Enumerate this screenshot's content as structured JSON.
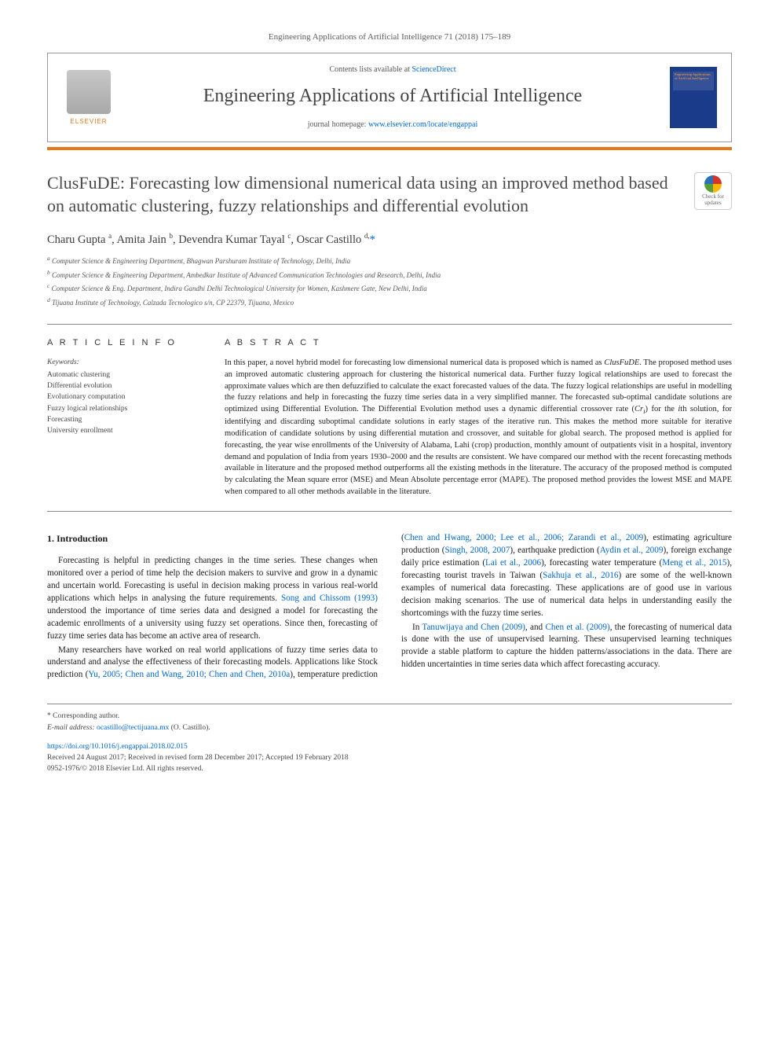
{
  "journal_ref": "Engineering Applications of Artificial Intelligence 71 (2018) 175–189",
  "header": {
    "contents_prefix": "Contents lists available at ",
    "contents_link": "ScienceDirect",
    "journal_name": "Engineering Applications of Artificial Intelligence",
    "homepage_prefix": "journal homepage: ",
    "homepage_url": "www.elsevier.com/locate/engappai",
    "elsevier_label": "ELSEVIER",
    "cover_text": "Engineering Applications of Artificial Intelligence"
  },
  "check_updates_label": "Check for updates",
  "title": "ClusFuDE: Forecasting low dimensional numerical data using an improved method based on automatic clustering, fuzzy relationships and differential evolution",
  "authors_html": "Charu Gupta <sup>a</sup>, Amita Jain <sup>b</sup>, Devendra Kumar Tayal <sup>c</sup>, Oscar Castillo <sup>d,</sup>",
  "corresponding_marker": "*",
  "affiliations": [
    "a Computer Science & Engineering Department, Bhagwan Parshuram Institute of Technology, Delhi, India",
    "b Computer Science & Engineering Department, Ambedkar Institute of Advanced Communication Technologies and Research, Delhi, India",
    "c Computer Science & Eng. Department, Indira Gandhi Delhi Technological University for Women, Kashmere Gate, New Delhi, India",
    "d Tijuana Institute of Technology, Calzada Tecnologico s/n, CP 22379, Tijuana, Mexico"
  ],
  "article_info_heading": "A R T I C L E   I N F O",
  "keywords_label": "Keywords:",
  "keywords": [
    "Automatic clustering",
    "Differential evolution",
    "Evolutionary computation",
    "Fuzzy logical relationships",
    "Forecasting",
    "University enrollment"
  ],
  "abstract_heading": "A B S T R A C T",
  "abstract": "In this paper, a novel hybrid model for forecasting low dimensional numerical data is proposed which is named as ClusFuDE. The proposed method uses an improved automatic clustering approach for clustering the historical numerical data. Further fuzzy logical relationships are used to forecast the approximate values which are then defuzzified to calculate the exact forecasted values of the data. The fuzzy logical relationships are useful in modelling the fuzzy relations and help in forecasting the fuzzy time series data in a very simplified manner. The forecasted sub-optimal candidate solutions are optimized using Differential Evolution. The Differential Evolution method uses a dynamic differential crossover rate (Cri) for the ith solution, for identifying and discarding suboptimal candidate solutions in early stages of the iterative run. This makes the method more suitable for iterative modification of candidate solutions by using differential mutation and crossover, and suitable for global search. The proposed method is applied for forecasting, the year wise enrollments of the University of Alabama, Lahi (crop) production, monthly amount of outpatients visit in a hospital, inventory demand and population of India from years 1930–2000 and the results are consistent. We have compared our method with the recent forecasting methods available in literature and the proposed method outperforms all the existing methods in the literature. The accuracy of the proposed method is computed by calculating the Mean square error (MSE) and Mean Absolute percentage error (MAPE). The proposed method provides the lowest MSE and MAPE when compared to all other methods available in the literature.",
  "intro_heading": "1. Introduction",
  "intro_p1": "Forecasting is helpful in predicting changes in the time series. These changes when monitored over a period of time help the decision makers to survive and grow in a dynamic and uncertain world. Forecasting is useful in decision making process in various real-world applications which helps in analysing the future requirements. ",
  "intro_p1_link1": "Song and Chissom (1993)",
  "intro_p1_tail": " understood the importance of time series data and designed a model for forecasting the academic enrollments of a university using fuzzy set operations. Since then, forecasting of fuzzy time series data has become an active area of research.",
  "intro_p2_lead": "Many researchers have worked on real world applications of fuzzy time series data to understand and analyse the effectiveness of their forecasting models. Applications like Stock prediction (",
  "intro_p2_links": "Yu, 2005; Chen and Wang, 2010; Chen and Chen, 2010a",
  "intro_p2_mid1": "), temperature prediction (",
  "intro_p2_links2": "Chen and Hwang, 2000; Lee et al., 2006; Zarandi et al., 2009",
  "intro_p2_mid2": "), estimating agriculture production (",
  "intro_p2_links3": "Singh, 2008, 2007",
  "intro_p2_mid3": "), earthquake prediction (",
  "intro_p2_links4": "Aydin et al., 2009",
  "intro_p2_mid4": "), foreign exchange daily price estimation (",
  "intro_p2_links5": "Lai et al., 2006",
  "intro_p2_mid5": "), forecasting water temperature (",
  "intro_p2_links6": "Meng et al., 2015",
  "intro_p2_mid6": "), forecasting tourist travels in Taiwan (",
  "intro_p2_links7": "Sakhuja et al., 2016",
  "intro_p2_tail": ") are some of the well-known examples of numerical data forecasting. These applications are of good use in various decision making scenarios. The use of numerical data helps in understanding easily the shortcomings with the fuzzy time series.",
  "intro_p3_lead": "In ",
  "intro_p3_link1": "Tanuwijaya and Chen (2009)",
  "intro_p3_mid1": ", and ",
  "intro_p3_link2": "Chen et al. (2009)",
  "intro_p3_tail": ", the forecasting of numerical data is done with the use of unsupervised learning. These unsupervised learning techniques provide a stable platform to capture the hidden patterns/associations in the data. There are hidden uncertainties in time series data which affect forecasting accuracy.",
  "footer": {
    "corresponding": "* Corresponding author.",
    "email_label": "E-mail address: ",
    "email": "ocastillo@tectijuana.mx",
    "email_suffix": " (O. Castillo).",
    "doi": "https://doi.org/10.1016/j.engappai.2018.02.015",
    "received": "Received 24 August 2017; Received in revised form 28 December 2017; Accepted 19 February 2018",
    "copyright": "0952-1976/© 2018 Elsevier Ltd. All rights reserved."
  },
  "colors": {
    "orange": "#e67817",
    "link": "#0066cc",
    "text": "#1a1a1a",
    "gray": "#5a5a5a"
  }
}
